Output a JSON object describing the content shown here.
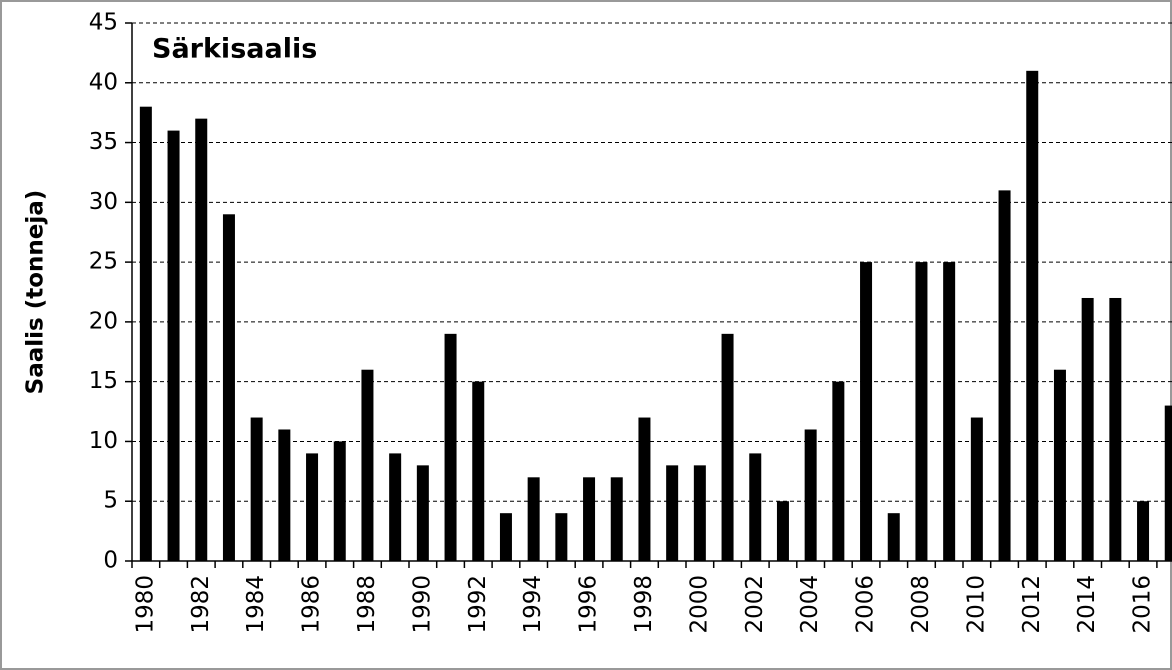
{
  "chart_data": {
    "type": "bar",
    "title": "Särkisaalis",
    "y_label": "Saalis (tonneja)",
    "categories": [
      "1980",
      null,
      "1982",
      null,
      "1984",
      null,
      "1986",
      null,
      "1988",
      null,
      "1990",
      null,
      "1992",
      null,
      "1994",
      null,
      "1996",
      null,
      "1998",
      null,
      "2000",
      null,
      "2002",
      null,
      "2004",
      null,
      "2006",
      null,
      "2008",
      null,
      "2010",
      null,
      "2012",
      null,
      "2014",
      null,
      "2016",
      null
    ],
    "values": [
      38,
      36,
      37,
      29,
      12,
      11,
      9,
      10,
      16,
      9,
      8,
      19,
      15,
      4,
      7,
      4,
      7,
      7,
      12,
      8,
      8,
      19,
      9,
      5,
      11,
      15,
      25,
      4,
      25,
      25,
      12,
      31,
      41,
      16,
      22,
      22,
      5,
      13
    ],
    "color": "#000000",
    "ylim": [
      0,
      45
    ],
    "yticks": [
      0,
      5,
      10,
      15,
      20,
      25,
      30,
      35,
      40,
      45
    ],
    "grid": true
  }
}
